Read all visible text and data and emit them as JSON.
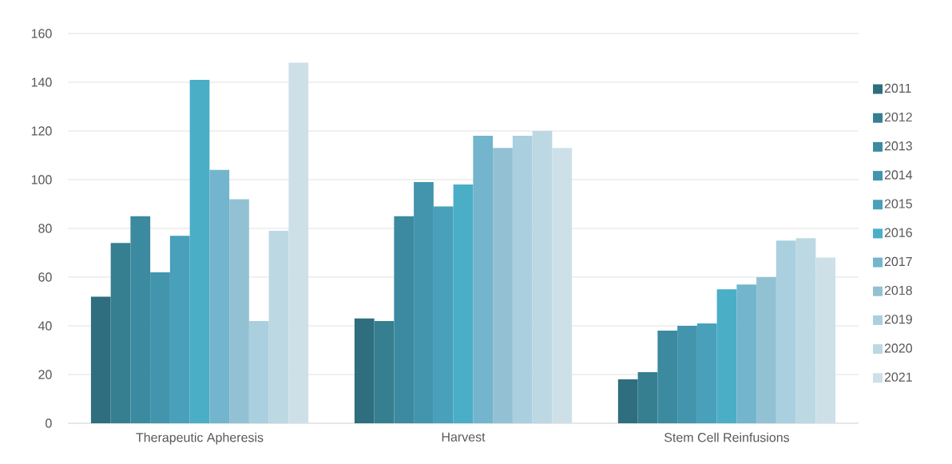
{
  "chart_data": {
    "type": "bar",
    "categories": [
      "Therapeutic Apheresis",
      "Harvest",
      "Stem Cell Reinfusions"
    ],
    "series": [
      {
        "name": "2011",
        "color": "#2e6e7e",
        "values": [
          52,
          43,
          18
        ]
      },
      {
        "name": "2012",
        "color": "#357f90",
        "values": [
          74,
          42,
          21
        ]
      },
      {
        "name": "2013",
        "color": "#3c8aa0",
        "values": [
          85,
          85,
          38
        ]
      },
      {
        "name": "2014",
        "color": "#4295ad",
        "values": [
          62,
          99,
          40
        ]
      },
      {
        "name": "2015",
        "color": "#48a0bb",
        "values": [
          77,
          89,
          41
        ]
      },
      {
        "name": "2016",
        "color": "#4aaec7",
        "values": [
          141,
          98,
          55
        ]
      },
      {
        "name": "2017",
        "color": "#72b5cc",
        "values": [
          104,
          118,
          57
        ]
      },
      {
        "name": "2018",
        "color": "#93c1d4",
        "values": [
          92,
          113,
          60
        ]
      },
      {
        "name": "2019",
        "color": "#aacfdf",
        "values": [
          42,
          118,
          75
        ]
      },
      {
        "name": "2020",
        "color": "#bcd8e3",
        "values": [
          79,
          120,
          76
        ]
      },
      {
        "name": "2021",
        "color": "#cde0e8",
        "values": [
          148,
          113,
          68
        ]
      }
    ],
    "ylim": [
      0,
      160
    ],
    "yticks": [
      0,
      20,
      40,
      60,
      80,
      100,
      120,
      140,
      160
    ],
    "grid": "y",
    "legend": "right"
  }
}
